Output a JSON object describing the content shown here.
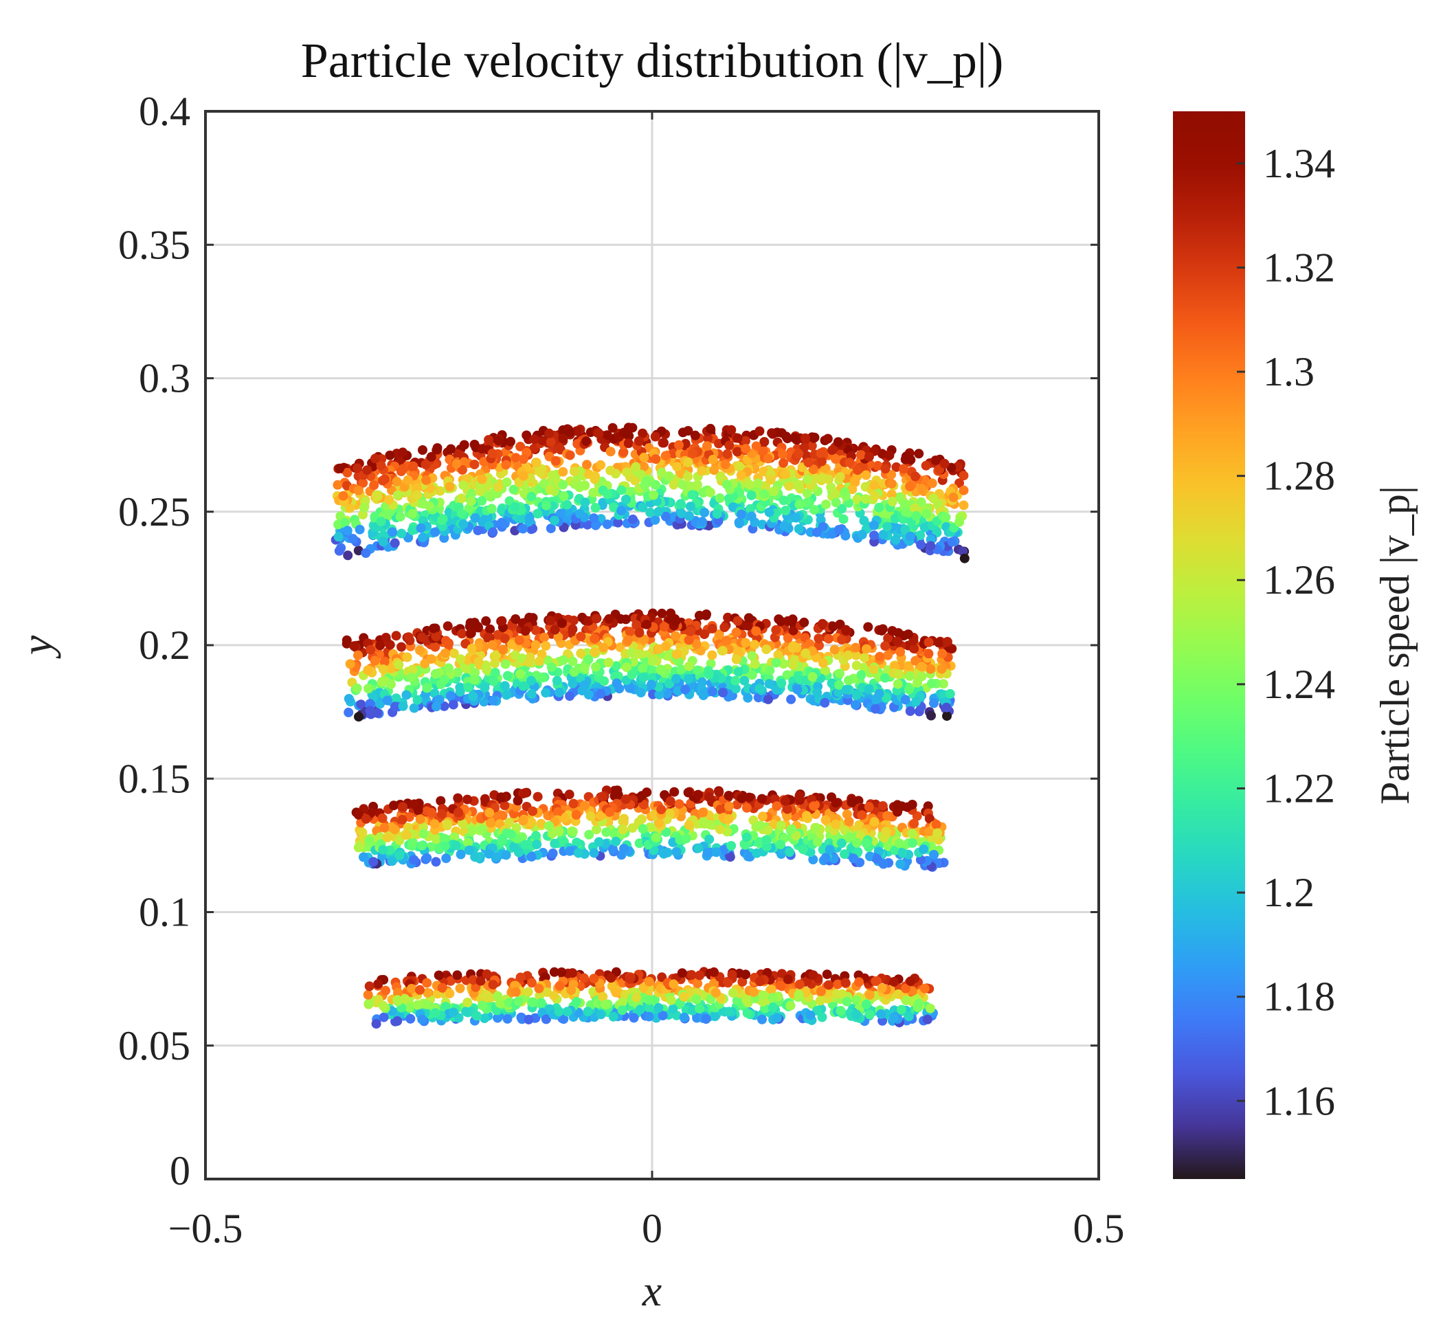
{
  "chart_data": {
    "type": "scatter",
    "title": "Particle velocity distribution (|v_p|)",
    "xlabel": "x",
    "ylabel": "y",
    "xlim": [
      -0.5,
      0.5
    ],
    "ylim": [
      0,
      0.4
    ],
    "xticks": [
      -0.5,
      0,
      0.5
    ],
    "xtick_labels": [
      "−0.5",
      "0",
      "0.5"
    ],
    "yticks": [
      0,
      0.05,
      0.1,
      0.15,
      0.2,
      0.25,
      0.3,
      0.35,
      0.4
    ],
    "ytick_labels": [
      "0",
      "0.05",
      "0.1",
      "0.15",
      "0.2",
      "0.25",
      "0.3",
      "0.35",
      "0.4"
    ],
    "grid": true,
    "colormap": "turbo",
    "colorbar": {
      "label": "Particle speed |v_p|",
      "clim": [
        1.145,
        1.35
      ],
      "ticks": [
        1.16,
        1.18,
        1.2,
        1.22,
        1.24,
        1.26,
        1.28,
        1.3,
        1.32,
        1.34
      ],
      "tick_labels": [
        "1.16",
        "1.18",
        "1.2",
        "1.22",
        "1.24",
        "1.26",
        "1.28",
        "1.3",
        "1.32",
        "1.34"
      ]
    },
    "bands": [
      {
        "x_range": [
          -0.355,
          0.35
        ],
        "top_center": 0.282,
        "top_edge": 0.268,
        "bottom_center": 0.245,
        "bottom_edge": 0.232,
        "speed_range": [
          1.15,
          1.35
        ],
        "count": 1500
      },
      {
        "x_range": [
          -0.342,
          0.337
        ],
        "top_center": 0.212,
        "top_edge": 0.202,
        "bottom_center": 0.181,
        "bottom_edge": 0.172,
        "speed_range": [
          1.15,
          1.35
        ],
        "count": 1250
      },
      {
        "x_range": [
          -0.332,
          0.327
        ],
        "top_center": 0.146,
        "top_edge": 0.139,
        "bottom_center": 0.121,
        "bottom_edge": 0.116,
        "speed_range": [
          1.155,
          1.35
        ],
        "count": 1000
      },
      {
        "x_range": [
          -0.318,
          0.315
        ],
        "top_center": 0.078,
        "top_edge": 0.075,
        "bottom_center": 0.06,
        "bottom_edge": 0.058,
        "speed_range": [
          1.16,
          1.345
        ],
        "count": 750
      }
    ]
  }
}
